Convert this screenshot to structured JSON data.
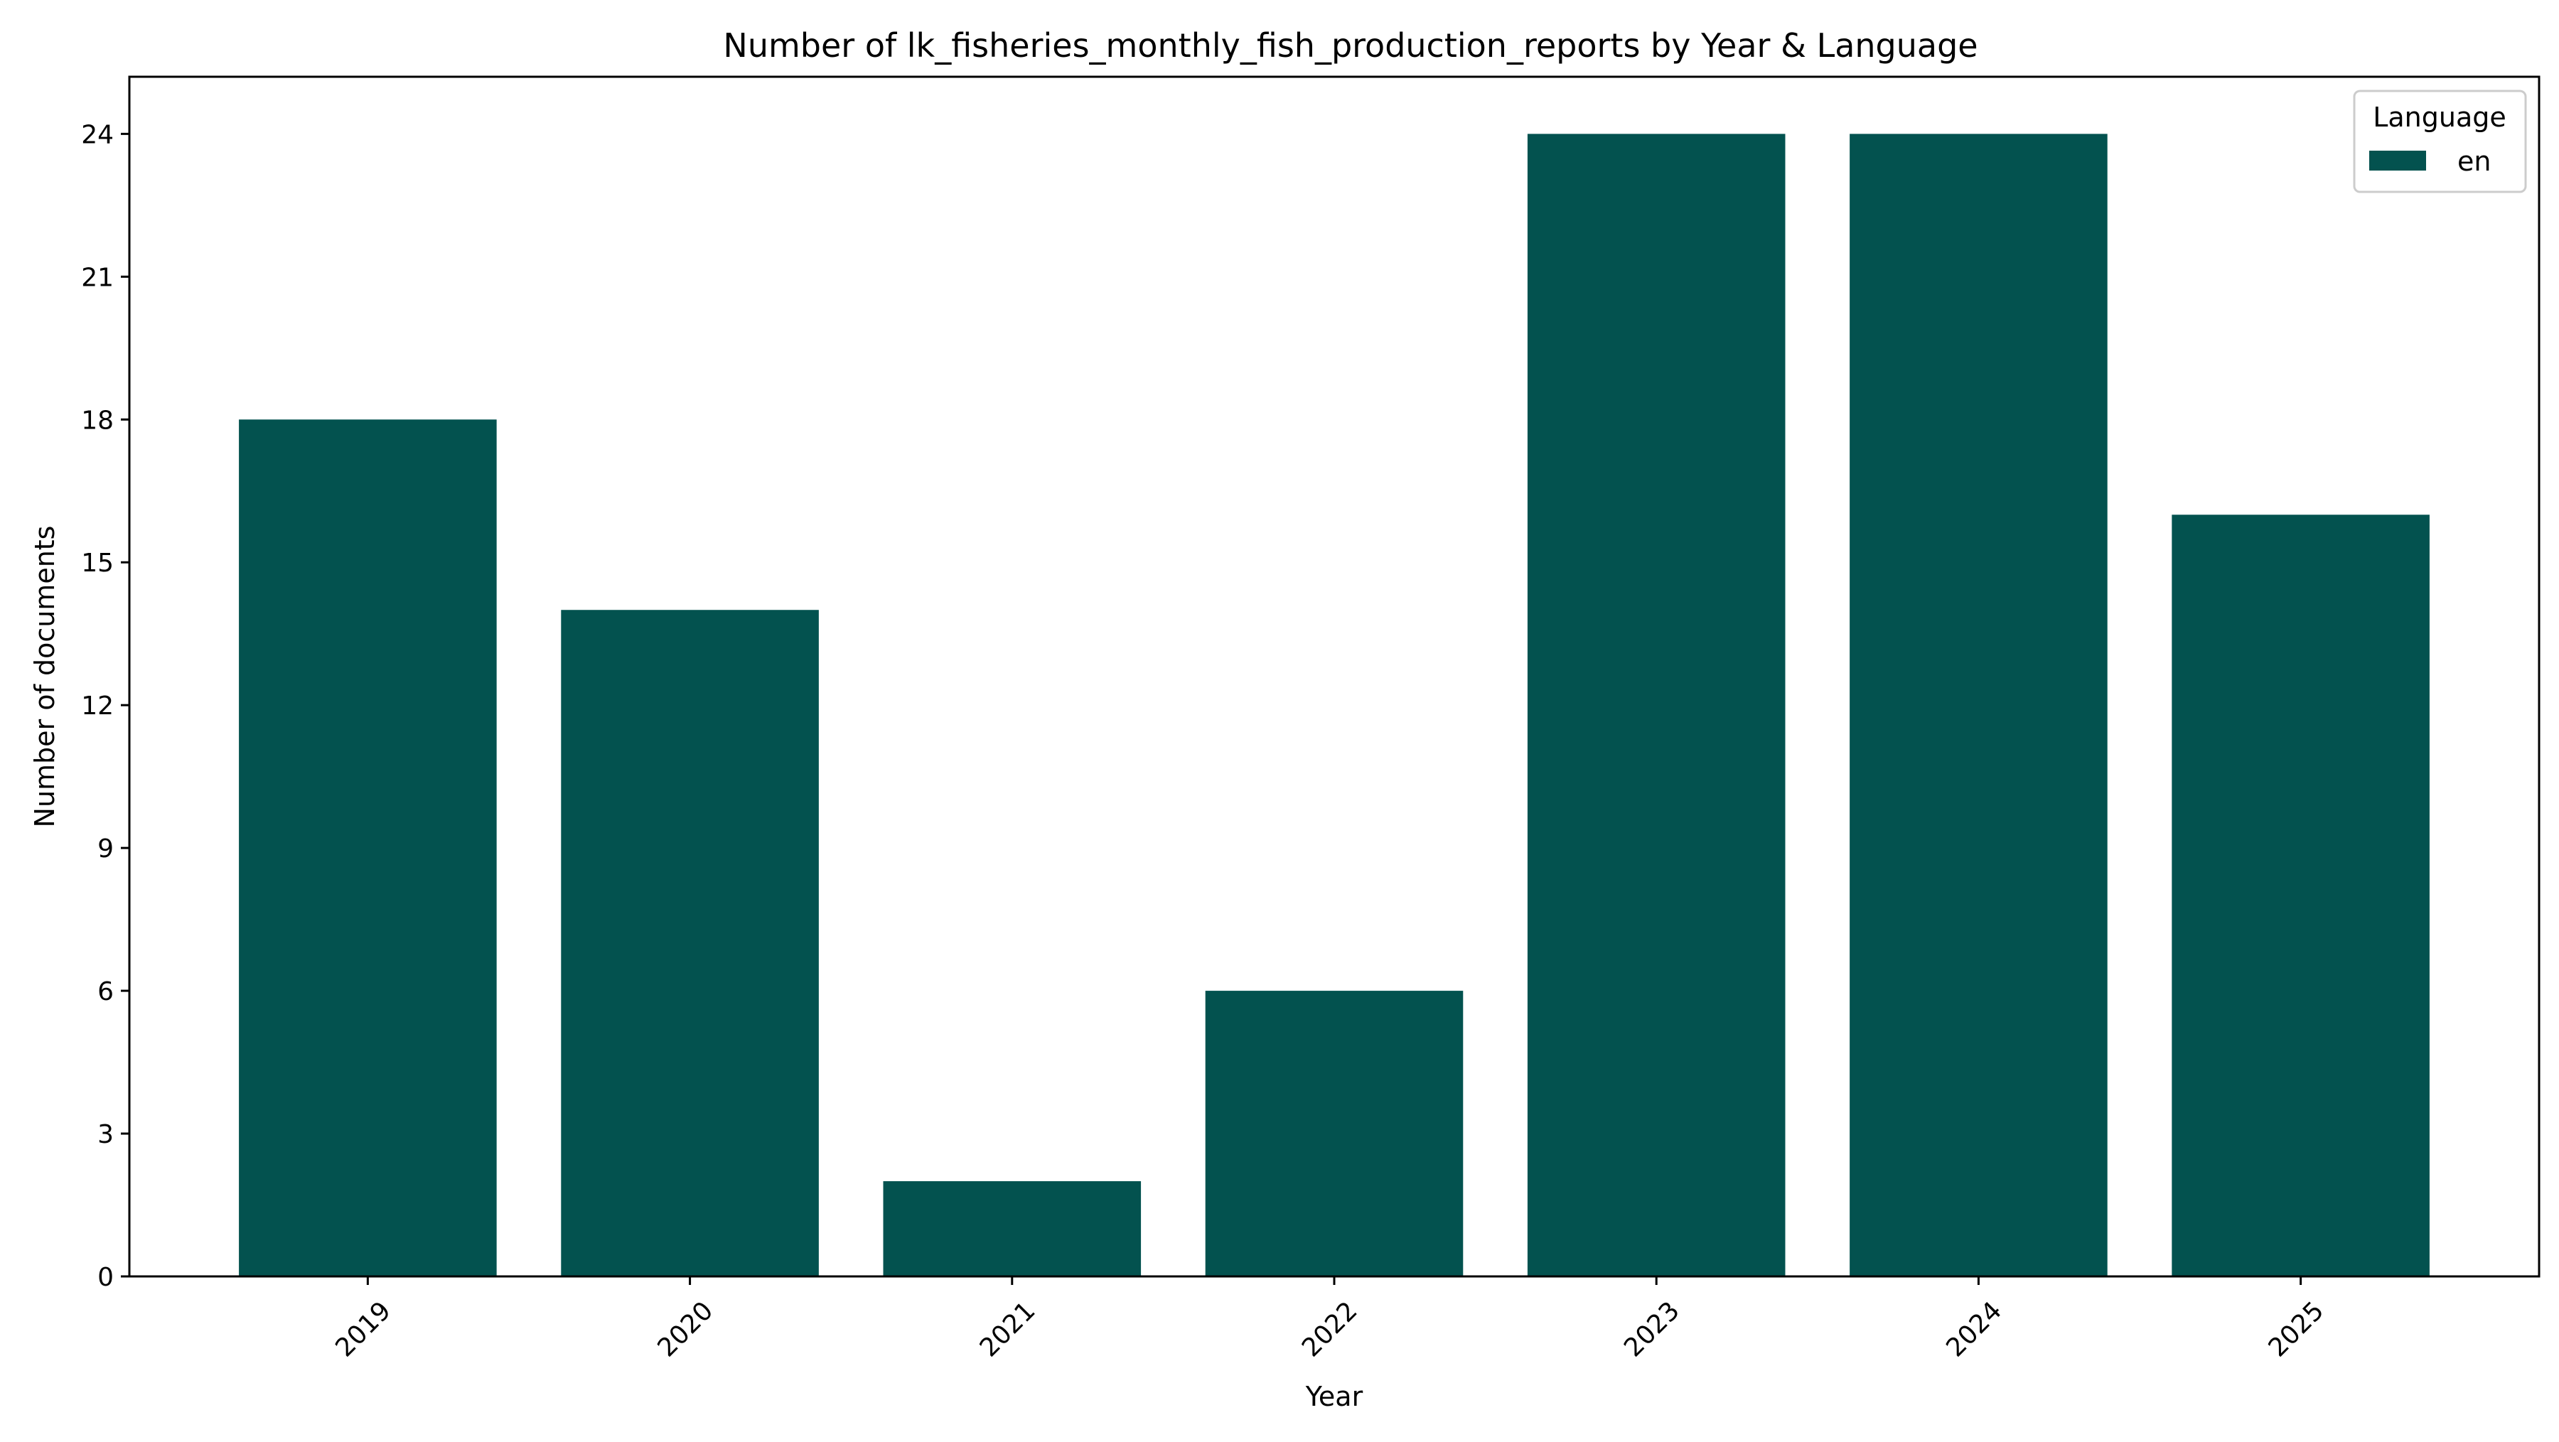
{
  "chart_data": {
    "type": "bar",
    "title": "Number of lk_fisheries_monthly_fish_production_reports by Year & Language",
    "xlabel": "Year",
    "ylabel": "Number of documents",
    "categories": [
      "2019",
      "2020",
      "2021",
      "2022",
      "2023",
      "2024",
      "2025"
    ],
    "series": [
      {
        "name": "en",
        "color": "#03524f",
        "values": [
          18,
          14,
          2,
          6,
          24,
          24,
          16
        ]
      }
    ],
    "ylim": [
      0,
      25.2
    ],
    "yticks": [
      0,
      3,
      6,
      9,
      12,
      15,
      18,
      21,
      24
    ],
    "xtick_rotation": 45,
    "grid": false,
    "legend": {
      "title": "Language",
      "placement": "top-right"
    }
  }
}
